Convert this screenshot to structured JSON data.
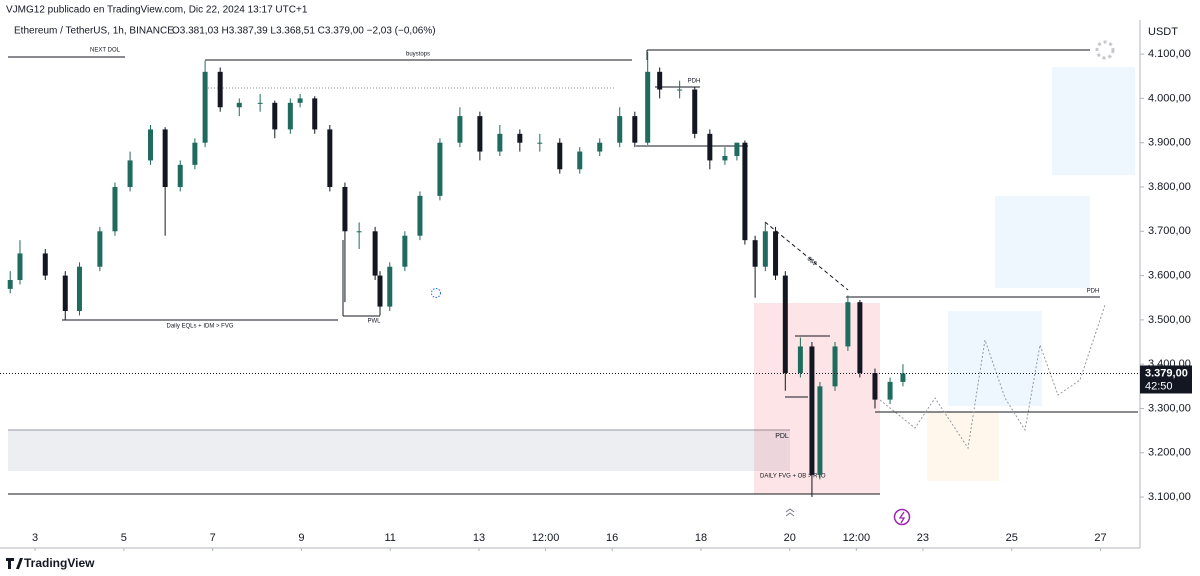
{
  "chart_data": {
    "type": "candlestick",
    "publisher": "VJMG12 publicado en TradingView.com, Dic 22, 2024 13:17 UTC+1",
    "title": "Ethereum / TetherUS, 1h, BINANCE",
    "ohlc_text": "O3.381,03 H3.387,39 L3.368,51 C3.379,00 −2,03 (−0,06%)",
    "unit": "USDT",
    "brand": "TradingView",
    "up_color": "#1f6b5e",
    "down_color": "#131722",
    "x": [
      2.44,
      2.66,
      3.23,
      3.68,
      4.0,
      4.46,
      4.8,
      5.14,
      5.6,
      5.93,
      6.27,
      6.6,
      6.83,
      7.17,
      7.6,
      8.07,
      8.4,
      8.75,
      8.97,
      9.3,
      9.64,
      9.98,
      10.3,
      10.66,
      10.77,
      10.99,
      11.33,
      11.67,
      12.12,
      12.57,
      13.02,
      13.47,
      13.92,
      14.37,
      14.82,
      15.27,
      15.72,
      16.17,
      16.51,
      16.8,
      17.07,
      17.52,
      17.86,
      18.2,
      18.54,
      18.81,
      18.99,
      19.22,
      19.45,
      19.68,
      19.9,
      20.24,
      20.5,
      20.68,
      21.02,
      21.31,
      21.58,
      21.92,
      22.26,
      22.55
    ],
    "open": [
      3570,
      3590,
      3650,
      3600,
      3520,
      3620,
      3700,
      3800,
      3860,
      3930,
      3800,
      3850,
      3900,
      4060,
      3980,
      3990,
      3990,
      3930,
      3990,
      4000,
      3930,
      3800,
      3700,
      3700,
      3600,
      3530,
      3620,
      3690,
      3780,
      3900,
      3960,
      3880,
      3920,
      3900,
      3900,
      3840,
      3880,
      3900,
      3960,
      3900,
      4060,
      4020,
      4020,
      3920,
      3860,
      3870,
      3900,
      3680,
      3620,
      3700,
      3600,
      3380,
      3440,
      3150,
      3350,
      3440,
      3540,
      3380,
      3320,
      3360
    ],
    "high": [
      3610,
      3680,
      3660,
      3610,
      3630,
      3710,
      3810,
      3880,
      3940,
      3935,
      3860,
      3910,
      4085,
      4070,
      4000,
      4010,
      3995,
      4000,
      4010,
      4005,
      3940,
      3810,
      3720,
      3710,
      3610,
      3630,
      3700,
      3790,
      3910,
      3980,
      3970,
      3940,
      3930,
      3920,
      3910,
      3890,
      3910,
      3980,
      3970,
      4105,
      4070,
      4040,
      4025,
      3930,
      3890,
      3900,
      3905,
      3690,
      3720,
      3710,
      3610,
      3460,
      3450,
      3360,
      3450,
      3555,
      3545,
      3390,
      3370,
      3400
    ],
    "low": [
      3560,
      3580,
      3590,
      3500,
      3510,
      3610,
      3690,
      3790,
      3850,
      3690,
      3790,
      3840,
      3890,
      3970,
      3960,
      3970,
      3910,
      3920,
      3980,
      3920,
      3790,
      3540,
      3660,
      3590,
      3510,
      3520,
      3610,
      3680,
      3770,
      3890,
      3860,
      3870,
      3880,
      3880,
      3830,
      3830,
      3870,
      3890,
      3890,
      3895,
      4000,
      4000,
      3910,
      3840,
      3850,
      3860,
      3670,
      3550,
      3610,
      3590,
      3340,
      3370,
      3100,
      3140,
      3340,
      3430,
      3370,
      3300,
      3310,
      3350
    ],
    "close": [
      3590,
      3650,
      3600,
      3520,
      3620,
      3700,
      3800,
      3860,
      3930,
      3800,
      3850,
      3900,
      4060,
      3980,
      3990,
      3990,
      3930,
      3990,
      4000,
      3930,
      3800,
      3700,
      3700,
      3600,
      3530,
      3620,
      3690,
      3780,
      3900,
      3960,
      3880,
      3920,
      3900,
      3900,
      3840,
      3880,
      3900,
      3960,
      3900,
      4060,
      4020,
      4020,
      3920,
      3860,
      3870,
      3900,
      3680,
      3620,
      3700,
      3600,
      3380,
      3440,
      3150,
      3350,
      3440,
      3540,
      3380,
      3320,
      3360,
      3379
    ],
    "last_price": {
      "value": 3379,
      "label": "3.379,00"
    },
    "countdown": "42:50",
    "xlim": [
      2.21,
      27.89
    ],
    "ylim": [
      2985,
      4177
    ],
    "xticks": [
      {
        "value": 3,
        "label": "3"
      },
      {
        "value": 5,
        "label": "5"
      },
      {
        "value": 7,
        "label": "7"
      },
      {
        "value": 9,
        "label": "9"
      },
      {
        "value": 11,
        "label": "11"
      },
      {
        "value": 13,
        "label": "13"
      },
      {
        "value": 14.5,
        "label": "12:00"
      },
      {
        "value": 16,
        "label": "16"
      },
      {
        "value": 18,
        "label": "18"
      },
      {
        "value": 20,
        "label": "20"
      },
      {
        "value": 21.5,
        "label": "12:00"
      },
      {
        "value": 23,
        "label": "23"
      },
      {
        "value": 25,
        "label": "25"
      },
      {
        "value": 27,
        "label": "27"
      }
    ],
    "yticks": [
      {
        "value": 3100,
        "label": "3.100,00"
      },
      {
        "value": 3200,
        "label": "3.200,00"
      },
      {
        "value": 3300,
        "label": "3.300,00"
      },
      {
        "value": 3400,
        "label": "3.400,00"
      },
      {
        "value": 3500,
        "label": "3.500,00"
      },
      {
        "value": 3600,
        "label": "3.600,00"
      },
      {
        "value": 3700,
        "label": "3.700,00"
      },
      {
        "value": 3800,
        "label": "3.800,00"
      },
      {
        "value": 3900,
        "label": "3.900,00"
      },
      {
        "value": 4000,
        "label": "4.000,00"
      },
      {
        "value": 4100,
        "label": "4.100,00"
      }
    ],
    "annotations": {
      "next_dol": "NEXT DOL",
      "buystops": "buystops",
      "pdh_1": "PDH",
      "pdh_2": "PDH",
      "eqls": "Daily EQLs + IDM > FVG",
      "pwl": "PWL",
      "pdl": "PDL",
      "fvg": "DAILY FVG + OB > RTO",
      "liquidity": "$$$"
    }
  }
}
